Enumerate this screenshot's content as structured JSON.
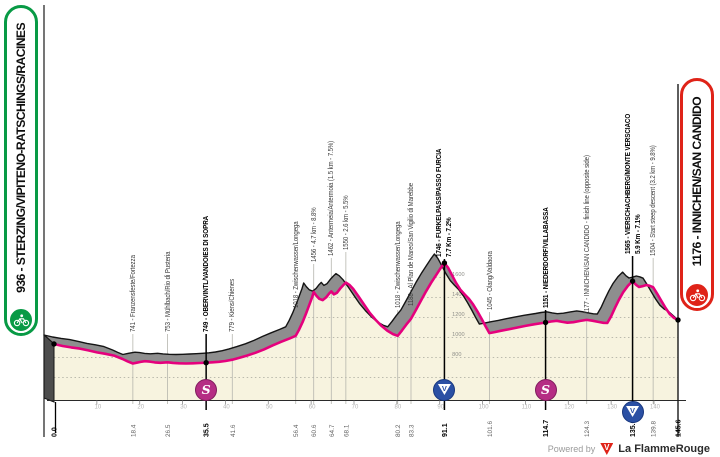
{
  "banners": {
    "start_label": "936 - STERZING/VIPITENO-RATSCHINGS/RACINES",
    "finish_label": "1176 - INNICHEN/SAN CANDIDO"
  },
  "footer": {
    "powered_by": "Powered by",
    "logo_letter": "V",
    "brand_first": "La Flamme",
    "brand_second": "Rouge"
  },
  "markers": {
    "sprint_letter": "S",
    "kom_letter": "V"
  },
  "colors": {
    "area_fill": "#f7f3df",
    "band_fill": "#8e8e8e",
    "outline": "#141414",
    "route_line": "#e5007d",
    "gridline": "#b3b3a6",
    "start_green": "#089a45",
    "finish_red": "#df2318",
    "sprint_magenta": "#b52d84",
    "kom_blue": "#2b50a4"
  },
  "chart_data": {
    "type": "area",
    "x_units": "km",
    "y_units": "m",
    "x_range": [
      0,
      145.6
    ],
    "elevation_gridlines": [
      600,
      800,
      1000,
      1200,
      1400,
      1600
    ],
    "elevation_axis_labels": {
      "x_km": 92.2,
      "values": [
        800,
        1000,
        1200,
        1400,
        1600
      ]
    },
    "distance_ticks": [
      10,
      20,
      30,
      40,
      50,
      60,
      70,
      80,
      90,
      100,
      110,
      120,
      130,
      140
    ],
    "start": {
      "km": 0,
      "km_label": "0.0",
      "elevation": 936
    },
    "finish": {
      "km": 145.6,
      "km_label": "145.6",
      "elevation": 1176
    },
    "waypoints": [
      {
        "km": 18.4,
        "km_label": "18.4",
        "elevation": 741,
        "label": "741 - Franzensfeste/Fortezza",
        "type": "minor",
        "lead_y": 334
      },
      {
        "km": 26.5,
        "km_label": "26.5",
        "elevation": 753,
        "label": "753 - Mühlbach/Rio di Pusteria",
        "type": "minor",
        "lead_y": 334
      },
      {
        "km": 35.5,
        "km_label": "35.5",
        "elevation": 749,
        "label": "749 - OBERVINTL/VANDOIES DI SOPRA",
        "type": "sprint",
        "dot": true,
        "lead_y": 334
      },
      {
        "km": 41.6,
        "km_label": "41.6",
        "elevation": 779,
        "label": "779 - Kiens/Chienes",
        "type": "minor",
        "lead_y": 334
      },
      {
        "km": 56.4,
        "km_label": "56.4",
        "elevation": 1018,
        "label": "1018 - Zwischenwasser/Longega",
        "type": "minor",
        "lead_y": 310
      },
      {
        "km": 60.6,
        "km_label": "60.6",
        "elevation": 1456,
        "label": "1456 - 4.7 km - 8.8%",
        "type": "minor",
        "lead_y": 264
      },
      {
        "km": 64.7,
        "km_label": "64.7",
        "elevation": 1462,
        "label": "1462 - Antermeia/Antermoia (1.5 km - 7.5%)",
        "type": "minor",
        "lead_y": 258
      },
      {
        "km": 68.1,
        "km_label": "68.1",
        "elevation": 1550,
        "label": "1550 - 2.6 km - 5.5%",
        "type": "minor",
        "lead_y": 252
      },
      {
        "km": 80.2,
        "km_label": "80.2",
        "elevation": 1018,
        "label": "1018 - Zwischenwasser/Longega",
        "type": "minor",
        "lead_y": 310
      },
      {
        "km": 83.3,
        "km_label": "83.3",
        "elevation": 1188,
        "label": "1188 - Al Plan de Mareo/San Vigilio di Marebbe",
        "type": "minor",
        "lead_y": 308
      },
      {
        "km": 91.1,
        "km_label": "91.1",
        "elevation": 1746,
        "label": "1746 - FURKELPASS/PASSO FURCIA",
        "line2": "7.7 Km - 7.2%",
        "type": "kom",
        "dot": true,
        "lead_y": 259
      },
      {
        "km": 101.6,
        "km_label": "101.6",
        "elevation": 1045,
        "label": "1045 - Olang/Valdaora",
        "type": "minor",
        "lead_y": 312
      },
      {
        "km": 114.7,
        "km_label": "114.7",
        "elevation": 1151,
        "label": "1151 - NIEDERDORF/VILLABASSA",
        "type": "sprint",
        "dot": true,
        "lead_y": 310
      },
      {
        "km": 124.3,
        "km_label": "124.3",
        "elevation": 1177,
        "label": "1177 - INNICHEN/SAN CANDIDO - finish line (opposite side)",
        "type": "minor",
        "lead_y": 316
      },
      {
        "km": 135.0,
        "km_label": "135.0",
        "elevation": 1565,
        "label": "1565 - VIERSCHACHBERG/MONTE VERSCIACO",
        "line2": "5.9 Km - 7.1%",
        "type": "kom",
        "dot": true,
        "lead_y": 256
      },
      {
        "km": 139.8,
        "km_label": "139.8",
        "elevation": 1504,
        "label": "1504 - Start steep descent (3.2 km - 9.8%)",
        "type": "minor",
        "lead_y": 258
      }
    ],
    "profile": [
      [
        0,
        936
      ],
      [
        2,
        916
      ],
      [
        4,
        902
      ],
      [
        6,
        890
      ],
      [
        8,
        872
      ],
      [
        10,
        852
      ],
      [
        12,
        838
      ],
      [
        14,
        820
      ],
      [
        16,
        786
      ],
      [
        17.2,
        762
      ],
      [
        18.4,
        741
      ],
      [
        19.3,
        749
      ],
      [
        20.2,
        757
      ],
      [
        21.2,
        764
      ],
      [
        22.3,
        760
      ],
      [
        23.5,
        752
      ],
      [
        24.8,
        748
      ],
      [
        26.5,
        753
      ],
      [
        27.8,
        747
      ],
      [
        29.2,
        743
      ],
      [
        30.8,
        741
      ],
      [
        32.4,
        743
      ],
      [
        34,
        746
      ],
      [
        35.5,
        749
      ],
      [
        37,
        753
      ],
      [
        38.5,
        758
      ],
      [
        40,
        766
      ],
      [
        41.6,
        779
      ],
      [
        43.2,
        797
      ],
      [
        45,
        820
      ],
      [
        47,
        848
      ],
      [
        49,
        882
      ],
      [
        51,
        922
      ],
      [
        53,
        958
      ],
      [
        55,
        992
      ],
      [
        56.4,
        1018
      ],
      [
        57.2,
        1080
      ],
      [
        58,
        1155
      ],
      [
        58.8,
        1240
      ],
      [
        59.6,
        1330
      ],
      [
        60.2,
        1400
      ],
      [
        60.6,
        1456
      ],
      [
        61.2,
        1420
      ],
      [
        61.9,
        1388
      ],
      [
        62.7,
        1375
      ],
      [
        63.5,
        1402
      ],
      [
        64.2,
        1440
      ],
      [
        64.7,
        1462
      ],
      [
        65.3,
        1432
      ],
      [
        66,
        1448
      ],
      [
        66.8,
        1492
      ],
      [
        67.5,
        1525
      ],
      [
        68.1,
        1550
      ],
      [
        68.9,
        1528
      ],
      [
        69.8,
        1488
      ],
      [
        71,
        1415
      ],
      [
        72.3,
        1332
      ],
      [
        73.6,
        1252
      ],
      [
        75,
        1180
      ],
      [
        76.4,
        1118
      ],
      [
        77.8,
        1068
      ],
      [
        79.1,
        1035
      ],
      [
        80.2,
        1018
      ],
      [
        81.2,
        1072
      ],
      [
        82.2,
        1130
      ],
      [
        83.3,
        1188
      ],
      [
        84.4,
        1272
      ],
      [
        85.6,
        1368
      ],
      [
        86.8,
        1462
      ],
      [
        88,
        1548
      ],
      [
        89.2,
        1628
      ],
      [
        90.2,
        1694
      ],
      [
        91.1,
        1746
      ],
      [
        91.9,
        1702
      ],
      [
        92.8,
        1630
      ],
      [
        93.8,
        1548
      ],
      [
        94.8,
        1480
      ],
      [
        95.8,
        1432
      ],
      [
        96.8,
        1388
      ],
      [
        97.8,
        1332
      ],
      [
        98.8,
        1262
      ],
      [
        99.8,
        1186
      ],
      [
        100.7,
        1112
      ],
      [
        101.6,
        1045
      ],
      [
        102.8,
        1055
      ],
      [
        104.2,
        1068
      ],
      [
        106,
        1082
      ],
      [
        108,
        1100
      ],
      [
        110,
        1117
      ],
      [
        112,
        1133
      ],
      [
        114.7,
        1151
      ],
      [
        116,
        1161
      ],
      [
        117.3,
        1168
      ],
      [
        118.6,
        1157
      ],
      [
        119.8,
        1149
      ],
      [
        121.2,
        1154
      ],
      [
        122.8,
        1167
      ],
      [
        124.3,
        1177
      ],
      [
        125.6,
        1169
      ],
      [
        127,
        1157
      ],
      [
        128.2,
        1148
      ],
      [
        129.1,
        1146
      ],
      [
        130,
        1212
      ],
      [
        130.9,
        1298
      ],
      [
        131.8,
        1378
      ],
      [
        132.8,
        1452
      ],
      [
        133.9,
        1518
      ],
      [
        135,
        1565
      ],
      [
        135.8,
        1528
      ],
      [
        136.5,
        1506
      ],
      [
        137.3,
        1514
      ],
      [
        138.2,
        1526
      ],
      [
        139,
        1518
      ],
      [
        139.8,
        1504
      ],
      [
        140.7,
        1442
      ],
      [
        141.7,
        1368
      ],
      [
        142.7,
        1296
      ],
      [
        143.7,
        1234
      ],
      [
        144.7,
        1196
      ],
      [
        145.6,
        1176
      ]
    ]
  }
}
